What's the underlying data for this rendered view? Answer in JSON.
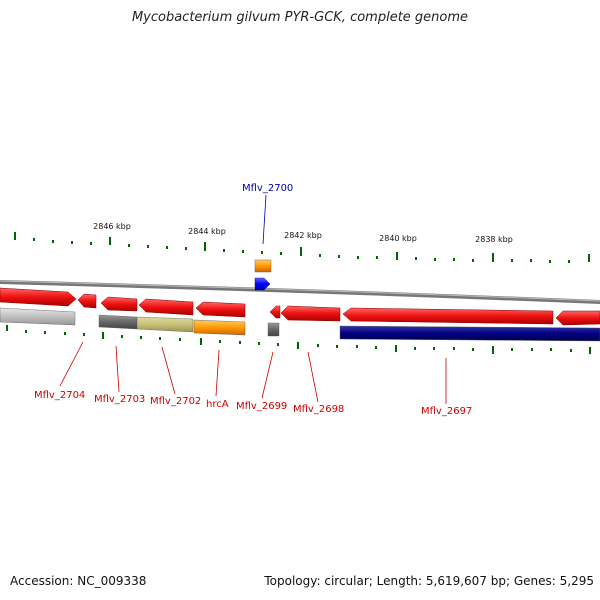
{
  "title": "Mycobacterium gilvum PYR-GCK, complete genome",
  "footer": {
    "accession": "Accession: NC_009338",
    "topology": "Topology: circular; Length: 5,619,607 bp; Genes: 5,295"
  },
  "scale_labels": [
    "2846 kbp",
    "2844 kbp",
    "2842 kbp",
    "2840 kbp",
    "2838 kbp"
  ],
  "genes": [
    {
      "name": "Mflv_2704",
      "color": "#cc0000"
    },
    {
      "name": "Mflv_2703",
      "color": "#cc0000"
    },
    {
      "name": "Mflv_2702",
      "color": "#cc0000"
    },
    {
      "name": "hrcA",
      "color": "#cc0000"
    },
    {
      "name": "Mflv_2699",
      "color": "#cc0000"
    },
    {
      "name": "Mflv_2698",
      "color": "#cc0000"
    },
    {
      "name": "Mflv_2697",
      "color": "#cc0000"
    },
    {
      "name": "Mflv_2700",
      "color": "#0000aa"
    }
  ],
  "colors": {
    "forward_cds": "#ee1111",
    "reverse_cds_navy": "#000080",
    "orange": "#ff9900",
    "blue": "#0000ff",
    "khaki": "#c8c079",
    "gray": "#666666",
    "light_gray": "#c0c0c0",
    "tick": "#006600"
  }
}
